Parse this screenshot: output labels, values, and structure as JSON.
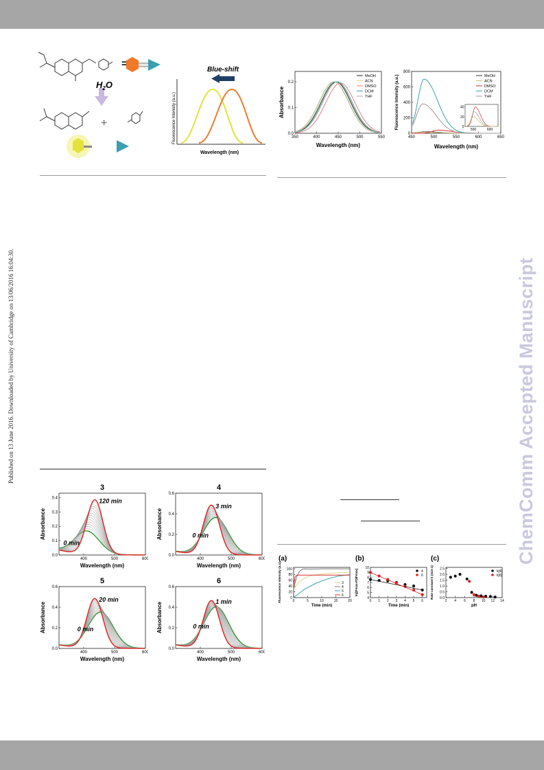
{
  "page": {
    "side_note": "Published on 13 June 2016. Downloaded by University of Cambridge on 13/06/2016 16:04:30.",
    "watermark": "ChemComm Accepted Manuscript"
  },
  "colors": {
    "band": "#a6a6a6",
    "watermark": "#c9c9de",
    "orange": "#f07a2a",
    "yellow": "#e3e23a",
    "teal": "#3a9fb0"
  },
  "scheme": {
    "reagent": "H2O",
    "reagent_main": "H",
    "reagent_sub": "2",
    "reagent_tail": "O",
    "equals": "=",
    "plus": "+",
    "blue_shift": "Blue-shift",
    "ylabel": "Fluorescence Intensity (a.u.)",
    "xlabel": "Wavelength (nm)"
  },
  "charts": {
    "solvent_abs": {
      "chart_data": {
        "type": "line",
        "xlabel": "Wavelength (nm)",
        "ylabel": "Absorbance",
        "xlim": [
          350,
          550
        ],
        "ylim": [
          0.0,
          0.24
        ],
        "xticks": [
          350,
          400,
          450,
          500,
          550
        ],
        "yticks": [
          0.0,
          0.1,
          0.2
        ],
        "legend": "top-right",
        "series": [
          {
            "name": "MeOH",
            "color": "#222222",
            "peak": 445,
            "height": 0.2
          },
          {
            "name": "ACN",
            "color": "#e0d98a",
            "peak": 443,
            "height": 0.2
          },
          {
            "name": "DMSO",
            "color": "#f07a7a",
            "peak": 455,
            "height": 0.195
          },
          {
            "name": "DCM",
            "color": "#3a9fb0",
            "peak": 448,
            "height": 0.2
          },
          {
            "name": "THF",
            "color": "#aaaaaa",
            "peak": 440,
            "height": 0.2
          }
        ]
      }
    },
    "solvent_fl": {
      "chart_data": {
        "type": "line",
        "xlabel": "Wavelength (nm)",
        "ylabel": "Fluorescence Intensity (a.u.)",
        "xlim": [
          450,
          650
        ],
        "ylim": [
          0,
          800
        ],
        "xticks": [
          450,
          500,
          550,
          600,
          650
        ],
        "yticks": [
          0,
          200,
          400,
          600,
          800
        ],
        "legend": "top-right",
        "series": [
          {
            "name": "MeOH",
            "color": "#333333",
            "peak": 480,
            "height": 20
          },
          {
            "name": "ACN",
            "color": "#c9c278",
            "peak": 478,
            "height": 15
          },
          {
            "name": "DMSO",
            "color": "#d83030",
            "peak": 510,
            "height": 40
          },
          {
            "name": "DCM",
            "color": "#3a9fb0",
            "peak": 478,
            "height": 700
          },
          {
            "name": "THF",
            "color": "#999999",
            "peak": 475,
            "height": 380
          }
        ],
        "inset": {
          "xticks": [
            500,
            600
          ],
          "yticks": [
            0,
            20,
            40
          ]
        }
      }
    },
    "kinetics": [
      {
        "id": "3",
        "title": "3",
        "label_start": "0 min",
        "label_end": "120 min",
        "chart_data": {
          "type": "line",
          "xlabel": "Wavelength (nm)",
          "ylabel": "Absorbance",
          "xlim": [
            320,
            600
          ],
          "ylim": [
            0,
            0.43
          ],
          "xticks": [
            400,
            500,
            600
          ],
          "yticks": [
            0.0,
            0.1,
            0.2,
            0.3,
            0.4
          ],
          "start_peak": 410,
          "start_height": 0.16,
          "end_peak": 436,
          "end_height": 0.38
        }
      },
      {
        "id": "4",
        "title": "4",
        "label_start": "0 min",
        "label_end": "3 min",
        "chart_data": {
          "type": "line",
          "xlabel": "Wavelength (nm)",
          "ylabel": "Absorbance",
          "xlim": [
            320,
            600
          ],
          "ylim": [
            0,
            0.6
          ],
          "xticks": [
            400,
            500,
            600
          ],
          "yticks": [
            0.0,
            0.2,
            0.4,
            0.6
          ],
          "start_peak": 450,
          "start_height": 0.36,
          "end_peak": 436,
          "end_height": 0.48
        }
      },
      {
        "id": "5",
        "title": "5",
        "label_start": "0 min",
        "label_end": "20 min",
        "chart_data": {
          "type": "line",
          "xlabel": "Wavelength (nm)",
          "ylabel": "Absorbance",
          "xlim": [
            320,
            600
          ],
          "ylim": [
            0,
            0.6
          ],
          "xticks": [
            400,
            500,
            600
          ],
          "yticks": [
            0.0,
            0.2,
            0.4,
            0.6
          ],
          "start_peak": 455,
          "start_height": 0.35,
          "end_peak": 436,
          "end_height": 0.48
        }
      },
      {
        "id": "6",
        "title": "6",
        "label_start": "0 min",
        "label_end": "1 min",
        "chart_data": {
          "type": "line",
          "xlabel": "Wavelength (nm)",
          "ylabel": "Absorbance",
          "xlim": [
            320,
            600
          ],
          "ylim": [
            0,
            0.6
          ],
          "xticks": [
            400,
            500,
            600
          ],
          "yticks": [
            0.0,
            0.2,
            0.4,
            0.6
          ],
          "start_peak": 452,
          "start_height": 0.4,
          "end_peak": 436,
          "end_height": 0.46
        }
      }
    ],
    "panel_a": {
      "label": "(a)",
      "chart_data": {
        "type": "line",
        "xlabel": "Time (min)",
        "ylabel": "Fluorescence Intensity (a.u)",
        "xlim": [
          0,
          20
        ],
        "ylim": [
          0,
          105
        ],
        "xticks": [
          0,
          5,
          10,
          15,
          20
        ],
        "yticks": [
          0,
          20,
          40,
          60,
          80,
          100
        ],
        "series": [
          {
            "name": "3",
            "color": "#e3d68a",
            "x": [
              0,
              2,
              4,
              6,
              8,
              10,
              14,
              20
            ],
            "y": [
              30,
              55,
              68,
              76,
              80,
              82,
              85,
              88
            ]
          },
          {
            "name": "4",
            "color": "#777777",
            "x": [
              0,
              1,
              2,
              3,
              4,
              6,
              10,
              20
            ],
            "y": [
              30,
              70,
              90,
              98,
              100,
              99,
              100,
              100
            ]
          },
          {
            "name": "5",
            "color": "#3a9fb0",
            "x": [
              0,
              4,
              8,
              12,
              16,
              20
            ],
            "y": [
              0,
              30,
              50,
              65,
              75,
              80
            ]
          },
          {
            "name": "6",
            "color": "#d83030",
            "x": [
              0,
              0.5,
              1,
              2,
              5,
              10,
              20
            ],
            "y": [
              40,
              72,
              77,
              78,
              78,
              78,
              78
            ]
          }
        ]
      }
    },
    "panel_b": {
      "label": "(b)",
      "chart_data": {
        "type": "scatter",
        "xlabel": "Time (min)",
        "ylabel": "ln[(Fmax-Ft)/Fmax]",
        "xlim": [
          0,
          6.5
        ],
        "ylim": [
          4,
          10
        ],
        "xticks": [
          0,
          1,
          2,
          3,
          4,
          5,
          6
        ],
        "yticks": [
          4,
          5,
          6,
          7,
          8,
          9,
          10
        ],
        "legend": "top-right",
        "series": [
          {
            "name": "4",
            "color": "#111111",
            "x": [
              0,
              1,
              2,
              3,
              4,
              5,
              6
            ],
            "y": [
              7.6,
              7.4,
              7.3,
              7.0,
              6.6,
              6.3,
              5.5
            ]
          },
          {
            "name": "6",
            "color": "#e02020",
            "x": [
              0,
              1,
              2,
              3,
              4,
              5,
              6
            ],
            "y": [
              9.0,
              8.3,
              7.6,
              6.9,
              6.2,
              5.5,
              4.6
            ]
          }
        ]
      }
    },
    "panel_c": {
      "label": "(c)",
      "chart_data": {
        "type": "scatter",
        "xlabel": "pH",
        "ylabel": "Rate constant k (min-1)",
        "xlim": [
          2,
          14
        ],
        "ylim": [
          0,
          2.6
        ],
        "xticks": [
          2,
          4,
          6,
          8,
          10,
          12,
          14
        ],
        "yticks": [
          0.0,
          0.5,
          1.0,
          1.5,
          2.0,
          2.5
        ],
        "legend": "top-right",
        "series": [
          {
            "name": "k[4]",
            "color": "#111111",
            "x": [
              3,
              4,
              5,
              6.5,
              7.5,
              8.5,
              9.5,
              10.5,
              11.5,
              12.5
            ],
            "y": [
              1.75,
              1.85,
              2.0,
              1.6,
              0.45,
              0.2,
              0.15,
              0.12,
              0.1,
              0.05
            ]
          },
          {
            "name": "k[6]",
            "color": "#e02020",
            "x": [
              7,
              8,
              9,
              10
            ],
            "y": [
              1.4,
              0.25,
              0.12,
              0.05
            ]
          }
        ]
      }
    }
  }
}
